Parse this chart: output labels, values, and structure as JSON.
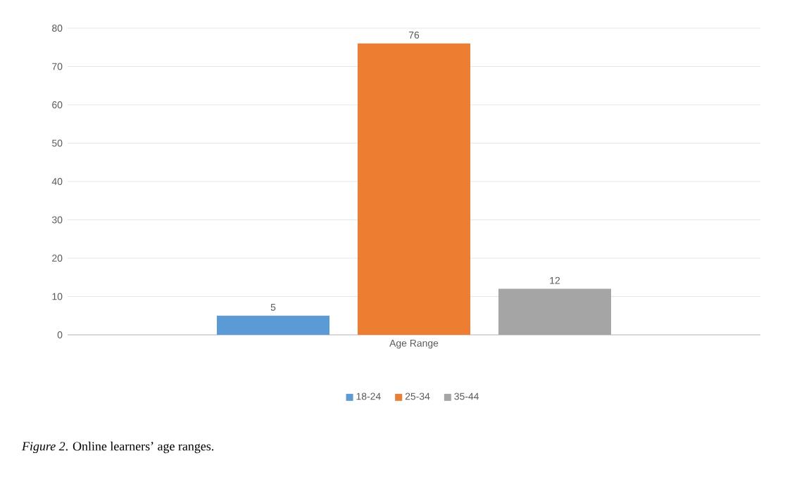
{
  "chart_data": {
    "type": "bar",
    "categories": [
      "Age Range"
    ],
    "series": [
      {
        "name": "18-24",
        "color": "#5b9bd5",
        "values": [
          5
        ]
      },
      {
        "name": "25-34",
        "color": "#ed7d31",
        "values": [
          76
        ]
      },
      {
        "name": "35-44",
        "color": "#a5a5a5",
        "values": [
          12
        ]
      }
    ],
    "ylim": [
      0,
      80
    ],
    "yticks": [
      0,
      10,
      20,
      30,
      40,
      50,
      60,
      70,
      80
    ],
    "grid": "y",
    "legend": "bottom",
    "data_labels": true,
    "annotations": [
      "*Figure 2*. Online learners’ age ranges."
    ]
  }
}
